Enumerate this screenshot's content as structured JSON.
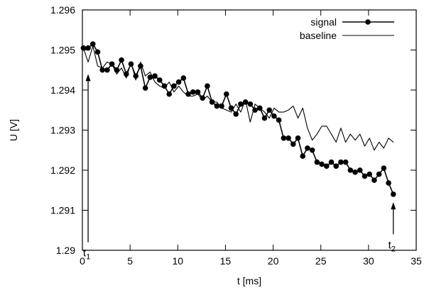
{
  "chart_data": {
    "type": "line",
    "title": "",
    "xlabel": "t [ms]",
    "ylabel": "U [V]",
    "xlim": [
      0,
      35
    ],
    "ylim": [
      1.29,
      1.296
    ],
    "x_ticks": [
      0,
      5,
      10,
      15,
      20,
      25,
      30,
      35
    ],
    "y_ticks": [
      1.29,
      1.291,
      1.292,
      1.293,
      1.294,
      1.295,
      1.296
    ],
    "x_tick_labels": [
      "0",
      "5",
      "10",
      "15",
      "20",
      "25",
      "30",
      "35"
    ],
    "y_tick_labels": [
      "1.29",
      "1.291",
      "1.292",
      "1.293",
      "1.294",
      "1.295",
      "1.296"
    ],
    "grid": false,
    "legend_position": "top-right",
    "legend": [
      "signal",
      "baseline"
    ],
    "series": [
      {
        "name": "signal",
        "style": "line-points",
        "color": "#000000",
        "x": [
          0.1,
          0.6,
          1.1,
          1.6,
          2.1,
          2.6,
          3.1,
          3.6,
          4.1,
          4.6,
          5.1,
          5.6,
          6.1,
          6.6,
          7.1,
          7.6,
          8.1,
          8.6,
          9.1,
          9.6,
          10.1,
          10.6,
          11.1,
          11.6,
          12.1,
          12.6,
          13.1,
          13.6,
          14.1,
          14.6,
          15.1,
          15.6,
          16.1,
          16.6,
          17.1,
          17.6,
          18.1,
          18.6,
          19.1,
          19.6,
          20.1,
          20.6,
          21.1,
          21.6,
          22.1,
          22.6,
          23.1,
          23.6,
          24.1,
          24.6,
          25.1,
          25.6,
          26.1,
          26.6,
          27.1,
          27.6,
          28.1,
          28.6,
          29.1,
          29.6,
          30.1,
          30.6,
          31.1,
          31.6,
          32.1,
          32.6
        ],
        "values": [
          1.29505,
          1.29505,
          1.29515,
          1.29495,
          1.2945,
          1.2945,
          1.29465,
          1.2945,
          1.29475,
          1.2944,
          1.29465,
          1.29435,
          1.2946,
          1.29405,
          1.29432,
          1.29435,
          1.29425,
          1.2941,
          1.2939,
          1.2941,
          1.2942,
          1.2943,
          1.2939,
          1.29395,
          1.29395,
          1.2938,
          1.2941,
          1.2937,
          1.2936,
          1.2936,
          1.2939,
          1.29355,
          1.2934,
          1.29365,
          1.2937,
          1.29365,
          1.2935,
          1.29355,
          1.2933,
          1.2935,
          1.29335,
          1.29325,
          1.2928,
          1.2928,
          1.29265,
          1.2928,
          1.29235,
          1.29255,
          1.2925,
          1.2922,
          1.29215,
          1.2921,
          1.2922,
          1.2921,
          1.2922,
          1.2922,
          1.292,
          1.29195,
          1.292,
          1.29185,
          1.2919,
          1.29175,
          1.2919,
          1.29205,
          1.29168,
          1.2914
        ]
      },
      {
        "name": "baseline",
        "style": "line",
        "color": "#000000",
        "x": [
          0.1,
          0.6,
          1.1,
          1.6,
          2.1,
          2.6,
          3.1,
          3.6,
          4.1,
          4.6,
          5.1,
          5.6,
          6.1,
          6.6,
          7.1,
          7.6,
          8.1,
          8.6,
          9.1,
          9.6,
          10.1,
          10.6,
          11.1,
          11.6,
          12.1,
          12.6,
          13.1,
          13.6,
          14.1,
          14.6,
          15.1,
          15.6,
          16.1,
          16.6,
          17.1,
          17.6,
          18.1,
          18.6,
          19.1,
          19.6,
          20.1,
          20.6,
          21.1,
          21.6,
          22.1,
          22.6,
          23.1,
          23.6,
          24.1,
          24.6,
          25.1,
          25.6,
          26.1,
          26.6,
          27.1,
          27.6,
          28.1,
          28.6,
          29.1,
          29.6,
          30.1,
          30.6,
          31.1,
          31.6,
          32.1,
          32.6
        ],
        "values": [
          1.29505,
          1.2947,
          1.2951,
          1.2946,
          1.29455,
          1.2947,
          1.29465,
          1.2944,
          1.29455,
          1.2943,
          1.2947,
          1.29425,
          1.2947,
          1.29435,
          1.29445,
          1.2942,
          1.2941,
          1.29405,
          1.2942,
          1.29395,
          1.2941,
          1.29395,
          1.29385,
          1.29385,
          1.2939,
          1.29375,
          1.29385,
          1.2937,
          1.2937,
          1.29355,
          1.2935,
          1.29345,
          1.29365,
          1.29345,
          1.29375,
          1.2932,
          1.29365,
          1.29355,
          1.29345,
          1.2933,
          1.29355,
          1.29345,
          1.29345,
          1.2935,
          1.2936,
          1.2933,
          1.29355,
          1.29305,
          1.29275,
          1.2929,
          1.2931,
          1.2931,
          1.2929,
          1.2927,
          1.29305,
          1.2927,
          1.2929,
          1.29275,
          1.2929,
          1.2926,
          1.2928,
          1.2925,
          1.2927,
          1.29255,
          1.2928,
          1.2927
        ]
      }
    ],
    "annotations": [
      {
        "text_main": "t",
        "text_sub": "1",
        "x": 0.6,
        "y_from": 1.2902,
        "y_to": 1.2944
      },
      {
        "text_main": "t",
        "text_sub": "2",
        "x": 32.6,
        "y_from": 1.2904,
        "y_to": 1.2912
      }
    ]
  }
}
